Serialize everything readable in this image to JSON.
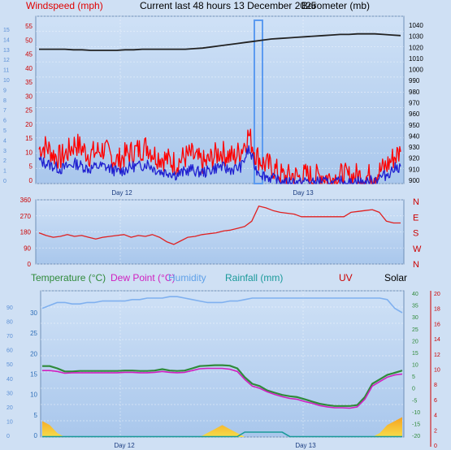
{
  "header": {
    "windspeed_label": "Windspeed (mph)",
    "title": "Current last 48 hours 13 December 2025",
    "barometer_label": "Barometer (mb)"
  },
  "legend_bottom": {
    "temperature": "Temperature (°C)",
    "dewpoint": "Dew Point (°C)",
    "humidity": "Humidity",
    "rainfall": "Rainfall (mm)",
    "uv": "UV",
    "solar": "Solar"
  },
  "colors": {
    "windspeed": "#ff0000",
    "gust_alt": "#2020d0",
    "barometer": "#222222",
    "direction": "#e02020",
    "temperature": "#2f8a3a",
    "dewpoint": "#d020c0",
    "humidity": "#7fb0ef",
    "rainfall": "#1a9a9a",
    "solar": "#f0a020",
    "uv": "#cc0000",
    "plot_bg_top": "#c4d9f2",
    "plot_bg_bottom": "#a8c6ec"
  },
  "chart_data": [
    {
      "type": "line",
      "title": "Current last 48 hours 13 December 2025",
      "ylabel": "Windspeed (mph)",
      "y2label": "Barometer (mb)",
      "x_ticks": [
        "Day 12",
        "Day 13"
      ],
      "y_ticks": [
        "0",
        "5",
        "10",
        "15",
        "20",
        "25",
        "30",
        "35",
        "40",
        "45",
        "50",
        "55"
      ],
      "y_far_left_ticks": [
        "0",
        "1",
        "2",
        "3",
        "4",
        "5",
        "6",
        "7",
        "8",
        "9",
        "10",
        "11",
        "12",
        "13",
        "14",
        "15"
      ],
      "y2_ticks": [
        "900",
        "910",
        "920",
        "930",
        "940",
        "950",
        "960",
        "970",
        "980",
        "990",
        "1000",
        "1010",
        "1020",
        "1030",
        "1040"
      ],
      "ylim": [
        0,
        58
      ],
      "y2lim": [
        898,
        1045
      ],
      "series": [
        {
          "name": "Windspeed (mph)",
          "values": [
            12,
            13,
            10,
            9,
            11,
            14,
            12,
            10,
            11,
            12,
            9,
            8,
            10,
            11,
            12,
            13,
            10,
            9,
            8,
            7,
            9,
            10,
            8,
            7,
            9,
            11,
            10,
            9,
            12,
            17,
            10,
            7,
            6,
            4,
            2,
            3,
            2,
            3,
            2,
            3,
            2,
            2,
            3,
            2,
            3,
            2,
            3,
            4,
            6,
            9,
            11
          ]
        },
        {
          "name": "",
          "values": [
            8,
            7,
            6,
            5,
            6,
            7,
            6,
            5,
            6,
            6,
            5,
            4,
            5,
            6,
            6,
            7,
            5,
            4,
            4,
            3,
            4,
            5,
            4,
            4,
            5,
            6,
            5,
            5,
            6,
            12,
            5,
            3,
            2,
            1,
            0,
            1,
            0,
            1,
            0,
            1,
            0,
            0,
            1,
            0,
            1,
            0,
            1,
            2,
            3,
            5,
            6
          ]
        },
        {
          "name": "Barometer (mb)",
          "values": [
            1016,
            1016,
            1016,
            1016,
            1015.5,
            1015.5,
            1015,
            1015,
            1015,
            1015,
            1015.5,
            1015.5,
            1016,
            1016,
            1016,
            1016,
            1016,
            1016,
            1016.5,
            1017,
            1018,
            1019,
            1020,
            1021,
            1022,
            1023,
            1024,
            1025,
            1025.5,
            1026,
            1026.5,
            1027,
            1027.5,
            1028,
            1028.5,
            1029,
            1029,
            1029.5,
            1029.5,
            1029.5,
            1029,
            1028.5,
            1028
          ]
        }
      ]
    },
    {
      "type": "line",
      "ylabel": "",
      "y_ticks": [
        "0",
        "90",
        "180",
        "270",
        "360"
      ],
      "y2_ticks": [
        "N",
        "W",
        "S",
        "E",
        "N"
      ],
      "ylim": [
        0,
        360
      ],
      "series": [
        {
          "name": "",
          "values": [
            175,
            160,
            150,
            155,
            165,
            155,
            160,
            150,
            140,
            150,
            155,
            160,
            165,
            150,
            160,
            155,
            165,
            150,
            125,
            110,
            130,
            150,
            155,
            165,
            170,
            175,
            185,
            190,
            200,
            210,
            240,
            325,
            315,
            300,
            290,
            285,
            280,
            265,
            265,
            265,
            265,
            265,
            265,
            265,
            290,
            295,
            300,
            305,
            290,
            240,
            230,
            230
          ]
        }
      ]
    },
    {
      "type": "line",
      "x_ticks": [
        "Day 12",
        "Day 13"
      ],
      "y_left_outer_ticks": [
        "0",
        "10",
        "20",
        "30",
        "40",
        "50",
        "60",
        "70",
        "80",
        "90"
      ],
      "y_left_ticks": [
        "0",
        "5",
        "10",
        "15",
        "20",
        "25",
        "30"
      ],
      "y_right_ticks": [
        "-20",
        "-15",
        "-10",
        "-5",
        "0",
        "5",
        "10",
        "15",
        "20",
        "25",
        "30",
        "35",
        "40"
      ],
      "y_right_outer_ticks": [
        "0",
        "2",
        "4",
        "6",
        "8",
        "10",
        "12",
        "14",
        "16",
        "18",
        "20"
      ],
      "ylim": [
        0,
        33
      ],
      "series": [
        {
          "name": "Temperature (°C)",
          "values": [
            16,
            16,
            15.5,
            14.8,
            14.8,
            14.9,
            14.9,
            14.9,
            14.9,
            14.9,
            14.9,
            15,
            15,
            14.9,
            14.9,
            15,
            15.3,
            15,
            14.9,
            15,
            15.5,
            16,
            16.1,
            16.2,
            16.2,
            16.1,
            15.5,
            13.5,
            12,
            11.5,
            10.5,
            10,
            9.5,
            9.2,
            9,
            8.5,
            8,
            7.5,
            7.2,
            7,
            7,
            7,
            7.2,
            9,
            12,
            13,
            14,
            14.5,
            15
          ]
        },
        {
          "name": "Dew Point (°C)",
          "values": [
            15,
            15,
            14.8,
            14.4,
            14.5,
            14.5,
            14.5,
            14.5,
            14.5,
            14.5,
            14.5,
            14.6,
            14.6,
            14.5,
            14.5,
            14.6,
            14.8,
            14.6,
            14.5,
            14.6,
            15,
            15.4,
            15.5,
            15.5,
            15.5,
            15.3,
            14.8,
            13,
            11.5,
            11,
            10.2,
            9.6,
            9.1,
            8.7,
            8.5,
            8,
            7.6,
            7.1,
            6.8,
            6.6,
            6.6,
            6.5,
            6.8,
            8.5,
            11.5,
            12.5,
            13.5,
            14,
            14.2
          ]
        },
        {
          "name": "Humidity",
          "values": [
            88,
            90,
            92,
            92,
            91,
            91,
            92,
            92,
            93,
            93,
            93,
            93,
            94,
            94,
            95,
            95,
            95,
            96,
            96,
            95,
            94,
            93,
            92,
            92,
            92,
            93,
            93,
            94,
            95,
            95,
            95,
            95,
            95,
            95,
            95,
            95,
            95,
            95,
            95,
            95,
            95,
            95,
            95,
            95,
            95,
            95,
            94,
            88,
            85
          ]
        },
        {
          "name": "Rainfall (mm)",
          "values": [
            0,
            0,
            0,
            0,
            0,
            0,
            0,
            0,
            0,
            0,
            0,
            0,
            0,
            0,
            0,
            0,
            0,
            0,
            0,
            0,
            0,
            0,
            0,
            0,
            0,
            0,
            0,
            0.8,
            0.8,
            0.8,
            0.8,
            0.8,
            0.8,
            0,
            0,
            0,
            0,
            0,
            0,
            0,
            0,
            0,
            0,
            0,
            0,
            0,
            0,
            0,
            0
          ]
        },
        {
          "name": "Solar",
          "values": [
            4,
            3,
            1,
            0,
            0,
            0,
            0,
            0,
            0,
            0,
            0,
            0,
            0,
            0,
            0,
            0,
            0,
            0,
            0,
            0,
            0,
            0,
            1,
            2,
            3,
            2,
            1,
            0,
            0,
            0,
            0,
            0,
            0,
            0,
            0,
            0,
            0,
            0,
            0,
            0,
            0,
            0,
            0,
            0,
            0,
            1,
            3,
            4,
            5
          ]
        }
      ]
    }
  ]
}
